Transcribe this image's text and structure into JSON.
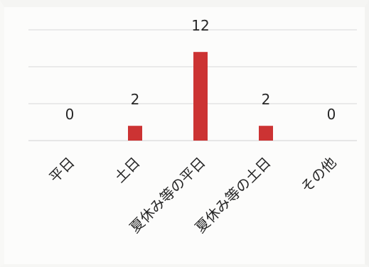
{
  "chart_data": {
    "type": "bar",
    "categories": [
      "平日",
      "土日",
      "夏休み等の平日",
      "夏休み等の土日",
      "その他"
    ],
    "values": [
      0,
      2,
      12,
      2,
      0
    ],
    "data_labels": [
      "0",
      "2",
      "12",
      "2",
      "0"
    ],
    "title": "",
    "xlabel": "",
    "ylabel": "",
    "ylim": [
      0,
      15
    ],
    "grid": true,
    "legend": "none",
    "bar_color": "#cc3333",
    "gridline_color": "#d9d9d9"
  }
}
